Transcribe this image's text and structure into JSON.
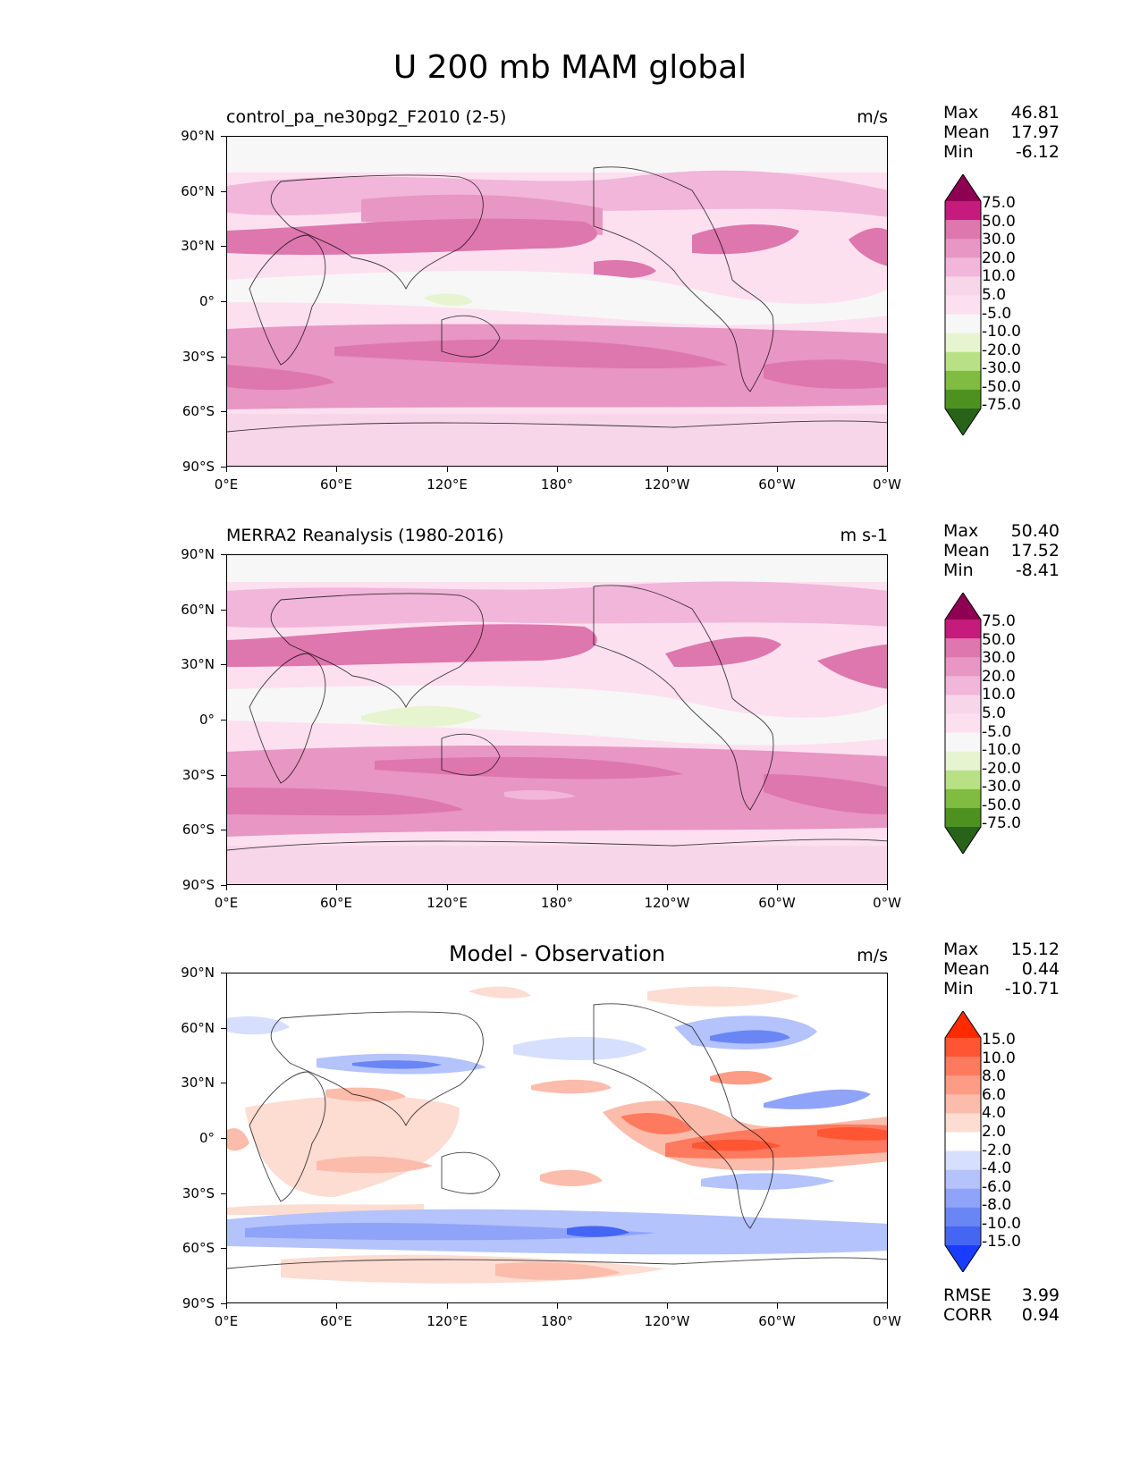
{
  "title": "U 200 mb MAM global",
  "x_ticks": [
    "0°E",
    "60°E",
    "120°E",
    "180°",
    "120°W",
    "60°W",
    "0°W"
  ],
  "y_ticks": [
    "90°N",
    "60°N",
    "30°N",
    "0°",
    "30°S",
    "60°S",
    "90°S"
  ],
  "panels": [
    {
      "title": "control_pa_ne30pg2_F2010 (2-5)",
      "units": "m/s",
      "stats": {
        "max_label": "Max",
        "max": "46.81",
        "mean_label": "Mean",
        "mean": "17.97",
        "min_label": "Min",
        "min": "-6.12"
      },
      "colorbar": {
        "levels": [
          "75.0",
          "50.0",
          "30.0",
          "20.0",
          "10.0",
          "5.0",
          "-5.0",
          "-10.0",
          "-20.0",
          "-30.0",
          "-50.0",
          "-75.0"
        ],
        "colors": [
          "#8e0152",
          "#c51b7d",
          "#de77ae",
          "#e896c4",
          "#f1b6da",
          "#f7d6ea",
          "#fde0ef",
          "#f7f7f7",
          "#e6f5d0",
          "#b8e186",
          "#7fbc41",
          "#4d9221",
          "#276419"
        ]
      }
    },
    {
      "title": "MERRA2 Reanalysis (1980-2016)",
      "units": "m s-1",
      "stats": {
        "max_label": "Max",
        "max": "50.40",
        "mean_label": "Mean",
        "mean": "17.52",
        "min_label": "Min",
        "min": "-8.41"
      },
      "colorbar": {
        "levels": [
          "75.0",
          "50.0",
          "30.0",
          "20.0",
          "10.0",
          "5.0",
          "-5.0",
          "-10.0",
          "-20.0",
          "-30.0",
          "-50.0",
          "-75.0"
        ],
        "colors": [
          "#8e0152",
          "#c51b7d",
          "#de77ae",
          "#e896c4",
          "#f1b6da",
          "#f7d6ea",
          "#fde0ef",
          "#f7f7f7",
          "#e6f5d0",
          "#b8e186",
          "#7fbc41",
          "#4d9221",
          "#276419"
        ]
      }
    },
    {
      "title": "Model - Observation",
      "units": "m/s",
      "stats": {
        "max_label": "Max",
        "max": "15.12",
        "mean_label": "Mean",
        "mean": "0.44",
        "min_label": "Min",
        "min": "-10.71"
      },
      "colorbar": {
        "levels": [
          "15.0",
          "10.0",
          "8.0",
          "6.0",
          "4.0",
          "2.0",
          "-2.0",
          "-4.0",
          "-6.0",
          "-8.0",
          "-10.0",
          "-15.0"
        ],
        "colors": [
          "#ff2a00",
          "#ff5533",
          "#fe7a5e",
          "#fd9c85",
          "#fbbcab",
          "#fddcd2",
          "#ffffff",
          "#d6dffd",
          "#b4c3fb",
          "#8fa4f8",
          "#6a86f5",
          "#4466f2",
          "#1a3cff"
        ]
      },
      "metrics": {
        "rmse_label": "RMSE",
        "rmse": "3.99",
        "corr_label": "CORR",
        "corr": "0.94"
      }
    }
  ]
}
